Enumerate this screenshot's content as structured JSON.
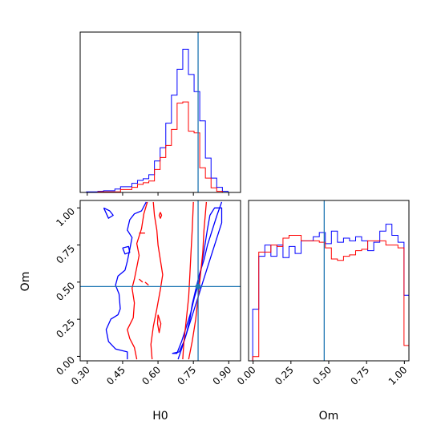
{
  "chart_data": {
    "type": "corner",
    "parameters": [
      "H0",
      "Om"
    ],
    "truth": {
      "H0": 0.77,
      "Om": 0.47
    },
    "colors": {
      "truth": "#1f77b4",
      "series_a": "#0000ff",
      "series_b": "#ff0000"
    },
    "panels": [
      {
        "id": "hist-H0",
        "type": "step-histogram",
        "xlim": [
          0.27,
          0.95
        ],
        "ylim": [
          0,
          28
        ],
        "show_tick_labels": false,
        "bin_edges": [
          0.297,
          0.321,
          0.345,
          0.369,
          0.393,
          0.417,
          0.441,
          0.465,
          0.489,
          0.513,
          0.537,
          0.561,
          0.585,
          0.609,
          0.633,
          0.657,
          0.681,
          0.705,
          0.729,
          0.753,
          0.777,
          0.801,
          0.825,
          0.849,
          0.873,
          0.897,
          0.921
        ],
        "series": [
          {
            "color": "#0000ff",
            "counts": [
              0.1,
              0.1,
              0.2,
              0.3,
              0.3,
              0.6,
              1.0,
              1.0,
              1.6,
              2.1,
              2.4,
              3.1,
              5.5,
              7.8,
              12.1,
              17.0,
              21.5,
              25.0,
              20.6,
              17.6,
              12.5,
              6.0,
              2.5,
              0.9,
              0.2,
              0
            ]
          },
          {
            "color": "#ff0000",
            "counts": [
              0,
              0,
              0.1,
              0.1,
              0.1,
              0.1,
              0.5,
              0.5,
              0.9,
              1.4,
              1.7,
              2.0,
              4.0,
              6.1,
              8.2,
              11.0,
              15.6,
              15.8,
              10.7,
              10.4,
              4.3,
              2.5,
              0.8,
              0.2,
              0,
              0
            ]
          }
        ]
      },
      {
        "id": "contour-H0-Om",
        "type": "contour",
        "xlim": [
          0.27,
          0.95
        ],
        "ylim": [
          -0.03,
          1.05
        ],
        "x_ticks": [
          "0.30",
          "0.45",
          "0.60",
          "0.75",
          "0.90"
        ],
        "x_tick_values": [
          0.3,
          0.45,
          0.6,
          0.75,
          0.9
        ],
        "y_ticks": [
          "0.00",
          "0.25",
          "0.50",
          "0.75",
          "1.00"
        ],
        "y_tick_values": [
          0.0,
          0.25,
          0.5,
          0.75,
          1.0
        ],
        "xlabel": "H0",
        "ylabel": "Om",
        "contours": [
          {
            "color": "#0000ff",
            "points": [
              [
                0.685,
                -0.02
              ],
              [
                0.7,
                0.05
              ],
              [
                0.72,
                0.15
              ],
              [
                0.735,
                0.25
              ],
              [
                0.745,
                0.35
              ],
              [
                0.76,
                0.45
              ],
              [
                0.775,
                0.55
              ],
              [
                0.795,
                0.65
              ],
              [
                0.81,
                0.75
              ],
              [
                0.83,
                0.85
              ],
              [
                0.85,
                0.95
              ],
              [
                0.87,
                1.04
              ]
            ]
          },
          {
            "color": "#0000ff",
            "points": [
              [
                0.66,
                0.02
              ],
              [
                0.68,
                0.02
              ],
              [
                0.7,
                0.1
              ],
              [
                0.72,
                0.2
              ],
              [
                0.74,
                0.3
              ],
              [
                0.755,
                0.4
              ],
              [
                0.77,
                0.48
              ],
              [
                0.78,
                0.56
              ],
              [
                0.79,
                0.66
              ],
              [
                0.8,
                0.76
              ],
              [
                0.81,
                0.86
              ],
              [
                0.82,
                0.95
              ],
              [
                0.84,
                1.0
              ],
              [
                0.87,
                1.0
              ],
              [
                0.87,
                0.9
              ],
              [
                0.85,
                0.8
              ],
              [
                0.83,
                0.7
              ],
              [
                0.81,
                0.6
              ],
              [
                0.79,
                0.5
              ],
              [
                0.77,
                0.4
              ],
              [
                0.75,
                0.3
              ],
              [
                0.73,
                0.2
              ],
              [
                0.71,
                0.1
              ],
              [
                0.69,
                0.03
              ],
              [
                0.66,
                0.02
              ]
            ]
          },
          {
            "color": "#0000ff",
            "points": [
              [
                0.55,
                1.04
              ],
              [
                0.53,
                0.98
              ],
              [
                0.5,
                0.96
              ],
              [
                0.48,
                0.92
              ],
              [
                0.47,
                0.85
              ],
              [
                0.49,
                0.8
              ],
              [
                0.48,
                0.72
              ],
              [
                0.47,
                0.64
              ],
              [
                0.46,
                0.58
              ],
              [
                0.43,
                0.54
              ],
              [
                0.42,
                0.48
              ],
              [
                0.435,
                0.42
              ],
              [
                0.44,
                0.32
              ],
              [
                0.43,
                0.28
              ],
              [
                0.4,
                0.25
              ],
              [
                0.38,
                0.18
              ],
              [
                0.39,
                0.1
              ],
              [
                0.42,
                0.05
              ],
              [
                0.47,
                0.03
              ],
              [
                0.47,
                -0.02
              ]
            ]
          },
          {
            "color": "#0000ff",
            "points": [
              [
                0.37,
                1.0
              ],
              [
                0.395,
                0.98
              ],
              [
                0.41,
                0.95
              ],
              [
                0.39,
                0.93
              ],
              [
                0.37,
                1.0
              ]
            ]
          },
          {
            "color": "#0000ff",
            "points": [
              [
                0.45,
                0.73
              ],
              [
                0.475,
                0.74
              ],
              [
                0.48,
                0.7
              ],
              [
                0.46,
                0.69
              ],
              [
                0.45,
                0.73
              ]
            ]
          },
          {
            "color": "#ff0000",
            "points": [
              [
                0.575,
                -0.02
              ],
              [
                0.57,
                0.08
              ],
              [
                0.58,
                0.2
              ],
              [
                0.595,
                0.32
              ],
              [
                0.61,
                0.45
              ],
              [
                0.62,
                0.55
              ],
              [
                0.61,
                0.65
              ],
              [
                0.6,
                0.75
              ],
              [
                0.595,
                0.85
              ],
              [
                0.585,
                0.95
              ],
              [
                0.58,
                1.04
              ]
            ]
          },
          {
            "color": "#ff0000",
            "points": [
              [
                0.51,
                -0.02
              ],
              [
                0.5,
                0.06
              ],
              [
                0.48,
                0.12
              ],
              [
                0.47,
                0.18
              ],
              [
                0.495,
                0.26
              ],
              [
                0.5,
                0.36
              ],
              [
                0.49,
                0.46
              ],
              [
                0.5,
                0.52
              ],
              [
                0.51,
                0.6
              ],
              [
                0.52,
                0.68
              ],
              [
                0.51,
                0.76
              ],
              [
                0.53,
                0.86
              ],
              [
                0.54,
                0.96
              ],
              [
                0.555,
                1.04
              ]
            ]
          },
          {
            "color": "#ff0000",
            "points": [
              [
                0.705,
                -0.02
              ],
              [
                0.71,
                0.1
              ],
              [
                0.72,
                0.25
              ],
              [
                0.73,
                0.4
              ],
              [
                0.735,
                0.55
              ],
              [
                0.74,
                0.7
              ],
              [
                0.745,
                0.85
              ],
              [
                0.75,
                1.04
              ]
            ]
          },
          {
            "color": "#ff0000",
            "points": [
              [
                0.73,
                -0.02
              ],
              [
                0.745,
                0.1
              ],
              [
                0.76,
                0.25
              ],
              [
                0.77,
                0.4
              ],
              [
                0.78,
                0.55
              ],
              [
                0.79,
                0.7
              ],
              [
                0.795,
                0.85
              ],
              [
                0.805,
                1.04
              ]
            ]
          },
          {
            "color": "#ff0000",
            "points": [
              [
                0.61,
                0.97
              ],
              [
                0.615,
                0.95
              ],
              [
                0.61,
                0.93
              ],
              [
                0.605,
                0.95
              ],
              [
                0.61,
                0.97
              ]
            ]
          },
          {
            "color": "#ff0000",
            "points": [
              [
                0.6,
                0.28
              ],
              [
                0.612,
                0.22
              ],
              [
                0.605,
                0.16
              ],
              [
                0.598,
                0.22
              ],
              [
                0.6,
                0.28
              ]
            ]
          },
          {
            "color": "#ff0000",
            "points": [
              [
                0.52,
                0.83
              ],
              [
                0.545,
                0.83
              ]
            ]
          },
          {
            "color": "#ff0000",
            "points": [
              [
                0.52,
                0.52
              ],
              [
                0.535,
                0.5
              ]
            ]
          },
          {
            "color": "#ff0000",
            "points": [
              [
                0.545,
                0.5
              ],
              [
                0.56,
                0.48
              ]
            ]
          }
        ]
      },
      {
        "id": "hist-Om",
        "type": "step-histogram",
        "xlim": [
          -0.03,
          1.03
        ],
        "ylim": [
          0,
          11.5
        ],
        "x_ticks": [
          "0.00",
          "0.25",
          "0.50",
          "0.75",
          "1.00"
        ],
        "x_tick_values": [
          0.0,
          0.25,
          0.5,
          0.75,
          1.0
        ],
        "xlabel": "Om",
        "bin_edges": [
          -0.0025,
          0.0375,
          0.0775,
          0.1175,
          0.1575,
          0.1975,
          0.2375,
          0.2775,
          0.3175,
          0.3575,
          0.3975,
          0.4375,
          0.4775,
          0.5175,
          0.5575,
          0.5975,
          0.6375,
          0.6775,
          0.7175,
          0.7575,
          0.7975,
          0.8375,
          0.8775,
          0.9175,
          0.9575,
          0.9975,
          1.0375
        ],
        "series": [
          {
            "color": "#0000ff",
            "counts": [
              3.7,
              7.5,
              8.3,
              7.5,
              8.3,
              7.4,
              8.2,
              7.7,
              8.6,
              8.6,
              8.9,
              9.2,
              8.4,
              9.3,
              8.5,
              8.8,
              8.6,
              8.9,
              8.6,
              7.9,
              8.5,
              9.3,
              9.8,
              9.0,
              8.5,
              4.7
            ]
          },
          {
            "color": "#ff0000",
            "counts": [
              0.3,
              7.8,
              7.8,
              8.3,
              8.2,
              8.8,
              9.0,
              9.0,
              8.6,
              8.6,
              8.6,
              8.5,
              8.1,
              7.3,
              7.2,
              7.5,
              7.6,
              7.9,
              8.0,
              8.6,
              8.6,
              8.6,
              8.3,
              8.3,
              8.1,
              1.1
            ]
          }
        ]
      }
    ]
  }
}
